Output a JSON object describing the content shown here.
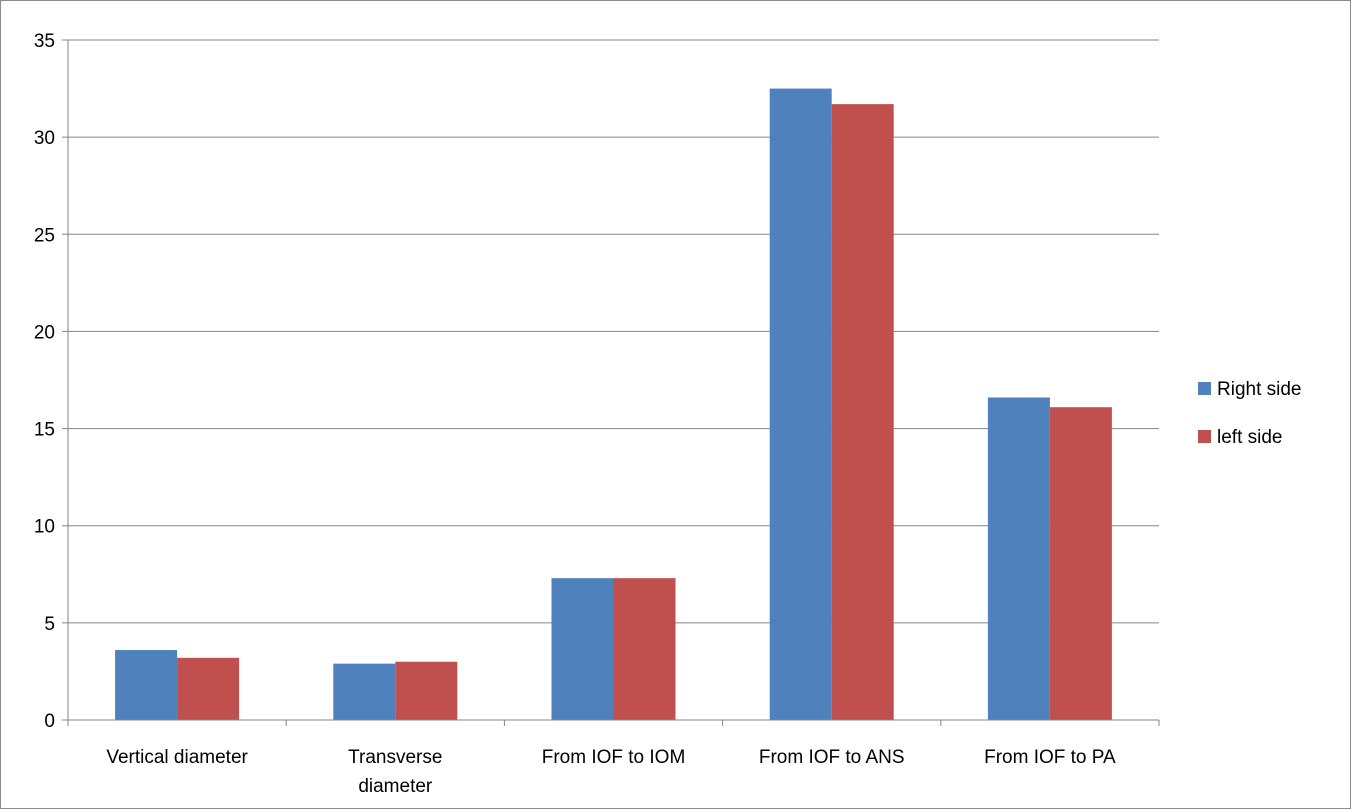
{
  "chart_data": {
    "type": "bar",
    "categories": [
      [
        "Vertical diameter"
      ],
      [
        "Transverse",
        "diameter"
      ],
      [
        "From IOF to IOM"
      ],
      [
        "From IOF to ANS"
      ],
      [
        "From IOF to PA"
      ]
    ],
    "series": [
      {
        "name": "Right side",
        "color": "#4f81bd",
        "values": [
          3.6,
          2.9,
          7.3,
          32.5,
          16.6
        ]
      },
      {
        "name": "left side",
        "color": "#c0504d",
        "values": [
          3.2,
          3.0,
          7.3,
          31.7,
          16.1
        ]
      }
    ],
    "ylim": [
      0,
      35
    ],
    "yticks": [
      0,
      5,
      10,
      15,
      20,
      25,
      30,
      35
    ],
    "grid": true,
    "legend_position": "right",
    "title": "",
    "xlabel": "",
    "ylabel": ""
  }
}
